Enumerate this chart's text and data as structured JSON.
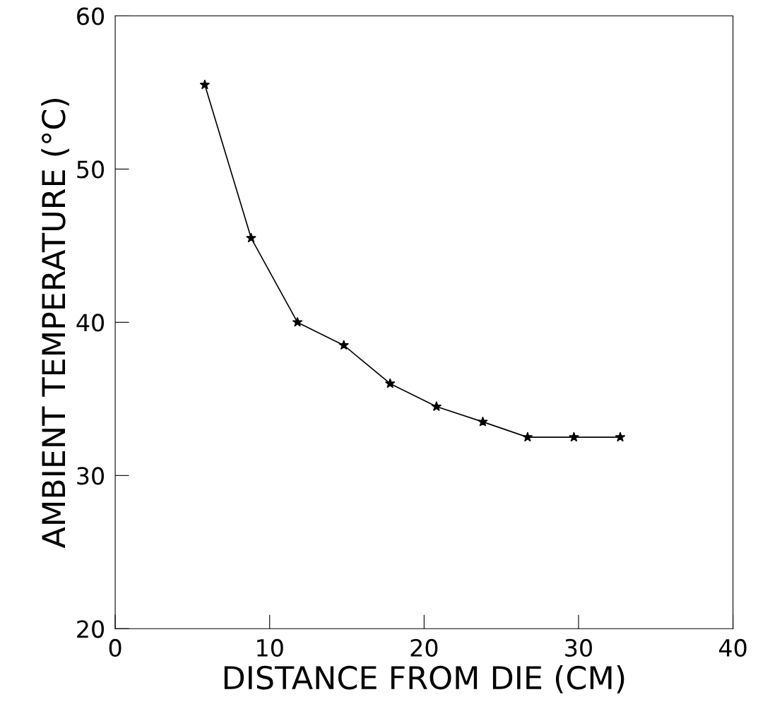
{
  "chart_data": {
    "type": "line",
    "xlabel": "DISTANCE FROM DIE (CM)",
    "ylabel": "AMBIENT TEMPERATURE (°C)",
    "x": [
      5.8,
      8.8,
      11.8,
      14.8,
      17.8,
      20.8,
      23.8,
      26.7,
      29.7,
      32.7
    ],
    "series": [
      {
        "color": "#000000",
        "values": [
          55.5,
          45.5,
          40,
          38.5,
          36,
          34.5,
          33.5,
          32.5,
          32.5,
          32.5
        ]
      }
    ],
    "xlim": [
      0,
      40
    ],
    "ylim": [
      20,
      60
    ],
    "xticks": [
      0,
      10,
      20,
      30,
      40
    ],
    "yticks": [
      20,
      30,
      40,
      50,
      60
    ],
    "marker": "star",
    "line_style": "solid",
    "grid": false,
    "legend": false
  }
}
